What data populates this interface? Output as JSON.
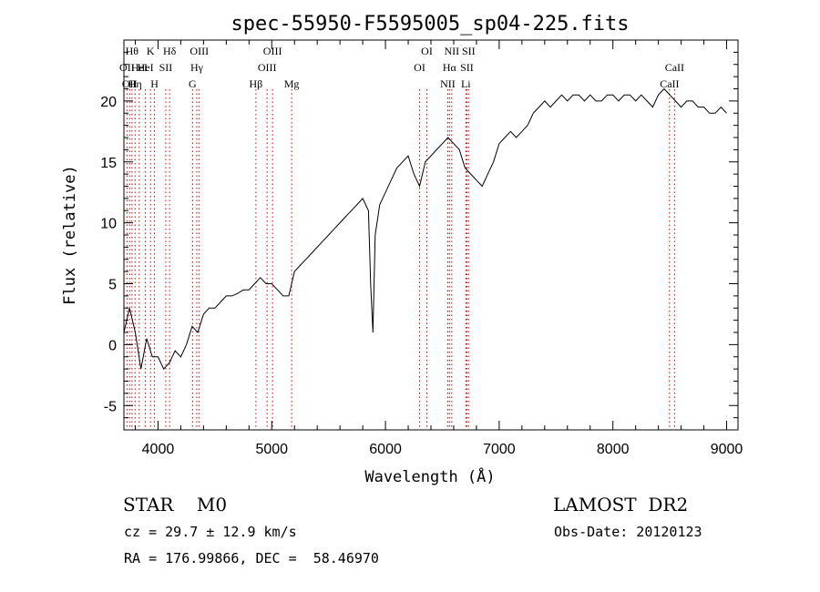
{
  "chart_data": {
    "type": "line",
    "title": "spec-55950-F5595005_sp04-225.fits",
    "xlabel": "Wavelength (Å)",
    "ylabel": "Flux (relative)",
    "xlim": [
      3700,
      9100
    ],
    "ylim": [
      -7,
      25
    ],
    "xticks": [
      4000,
      5000,
      6000,
      7000,
      8000,
      9000
    ],
    "yticks": [
      -5,
      0,
      5,
      10,
      15,
      20
    ],
    "grid": false,
    "series": [
      {
        "x": [
          3700,
          3750,
          3800,
          3850,
          3900,
          3950,
          4000,
          4050,
          4100,
          4150,
          4200,
          4250,
          4300,
          4350,
          4400,
          4450,
          4500,
          4550,
          4600,
          4650,
          4700,
          4750,
          4800,
          4850,
          4900,
          4950,
          5000,
          5050,
          5100,
          5150,
          5200,
          5250,
          5300,
          5350,
          5400,
          5450,
          5500,
          5550,
          5600,
          5650,
          5700,
          5750,
          5800,
          5850,
          5870,
          5890,
          5910,
          5950,
          6000,
          6050,
          6100,
          6150,
          6200,
          6250,
          6300,
          6350,
          6400,
          6450,
          6500,
          6550,
          6600,
          6650,
          6700,
          6750,
          6800,
          6850,
          6900,
          6950,
          7000,
          7050,
          7100,
          7150,
          7200,
          7250,
          7300,
          7350,
          7400,
          7450,
          7500,
          7550,
          7600,
          7650,
          7700,
          7750,
          7800,
          7850,
          7900,
          7950,
          8000,
          8050,
          8100,
          8150,
          8200,
          8250,
          8300,
          8350,
          8400,
          8450,
          8500,
          8550,
          8600,
          8650,
          8700,
          8750,
          8800,
          8850,
          8900,
          8950,
          9000
        ],
        "y": [
          1.0,
          3.0,
          1.0,
          -2.0,
          0.5,
          -1.0,
          -1.0,
          -2.0,
          -1.5,
          -0.5,
          -1.0,
          0.0,
          1.5,
          1.0,
          2.5,
          3.0,
          3.0,
          3.5,
          4.0,
          4.0,
          4.2,
          4.5,
          4.5,
          5.0,
          5.5,
          5.0,
          5.0,
          4.5,
          4.0,
          4.0,
          6.0,
          6.5,
          7.0,
          7.5,
          8.0,
          8.5,
          9.0,
          9.5,
          10.0,
          10.5,
          11.0,
          11.5,
          12.0,
          11.0,
          5.0,
          1.0,
          9.0,
          11.5,
          12.5,
          13.5,
          14.5,
          15.0,
          15.5,
          14.0,
          13.0,
          15.0,
          15.5,
          16.0,
          16.5,
          17.0,
          16.5,
          16.0,
          14.5,
          14.0,
          13.5,
          13.0,
          14.0,
          15.0,
          16.5,
          17.0,
          17.5,
          17.0,
          17.5,
          18.0,
          19.0,
          19.5,
          20.0,
          19.5,
          20.0,
          20.5,
          20.0,
          20.5,
          20.5,
          20.0,
          20.5,
          20.0,
          20.0,
          20.5,
          20.5,
          20.0,
          20.5,
          20.5,
          20.0,
          20.5,
          20.0,
          19.5,
          20.5,
          21.0,
          20.5,
          20.0,
          19.5,
          20.0,
          20.0,
          19.5,
          19.5,
          19.0,
          19.0,
          19.5,
          19.0
        ]
      }
    ],
    "line_markers": [
      {
        "x": 3727,
        "label": "OII",
        "row": 1
      },
      {
        "x": 3750,
        "label": "OII",
        "row": 2
      },
      {
        "x": 3771,
        "label": "Hθ",
        "row": 0
      },
      {
        "x": 3798,
        "label": "Hη",
        "row": 2
      },
      {
        "x": 3835,
        "label": "HeI",
        "row": 1
      },
      {
        "x": 3889,
        "label": "HeI",
        "row": 1
      },
      {
        "x": 3934,
        "label": "K",
        "row": 0
      },
      {
        "x": 3969,
        "label": "H",
        "row": 2
      },
      {
        "x": 4068,
        "label": "SII",
        "row": 1
      },
      {
        "x": 4102,
        "label": "Hδ",
        "row": 0
      },
      {
        "x": 4304,
        "label": "G",
        "row": 2
      },
      {
        "x": 4341,
        "label": "Hγ",
        "row": 1
      },
      {
        "x": 4363,
        "label": "OIII",
        "row": 0
      },
      {
        "x": 4861,
        "label": "Hβ",
        "row": 2
      },
      {
        "x": 4959,
        "label": "OIII",
        "row": 1
      },
      {
        "x": 5007,
        "label": "OIII",
        "row": 0
      },
      {
        "x": 5175,
        "label": "Mg",
        "row": 2
      },
      {
        "x": 6300,
        "label": "OI",
        "row": 1
      },
      {
        "x": 6364,
        "label": "OI",
        "row": 0
      },
      {
        "x": 6548,
        "label": "NII",
        "row": 2
      },
      {
        "x": 6563,
        "label": "Hα",
        "row": 1
      },
      {
        "x": 6583,
        "label": "NII",
        "row": 0
      },
      {
        "x": 6707,
        "label": "Li",
        "row": 2
      },
      {
        "x": 6716,
        "label": "SII",
        "row": 1
      },
      {
        "x": 6731,
        "label": "SII",
        "row": 0
      },
      {
        "x": 8498,
        "label": "CaII",
        "row": 2
      },
      {
        "x": 8542,
        "label": "CaII",
        "row": 1
      }
    ]
  },
  "info": {
    "class": "STAR    M0",
    "survey": "LAMOST  DR2",
    "cz": "cz = 29.7 ± 12.9 km/s",
    "obs_date": "Obs-Date: 20120123",
    "coords": "RA = 176.99866, DEC =  58.46970"
  }
}
